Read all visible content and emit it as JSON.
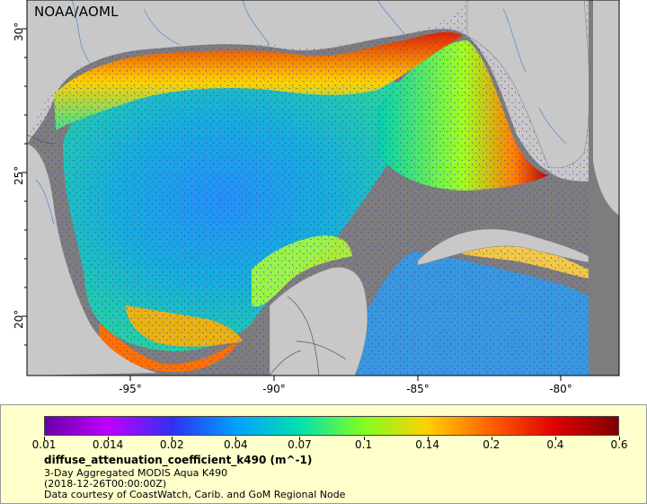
{
  "map": {
    "credit": "NOAA/AOML",
    "lon_labels": [
      "-95°",
      "-90°",
      "-85°",
      "-80°"
    ],
    "lat_labels": [
      "30°",
      "25°",
      "20°"
    ],
    "colors": {
      "land": "#c8c8c8",
      "no_data": "#7d7d7d",
      "rivers": "#5b8fd4",
      "borders": "#555555"
    }
  },
  "legend": {
    "colorbar_labels": [
      "0.01",
      "0.014",
      "0.02",
      "0.04",
      "0.07",
      "0.1",
      "0.14",
      "0.2",
      "0.4",
      "0.6"
    ],
    "colorbar_colors": [
      "#6a00a8",
      "#c000ff",
      "#3030f0",
      "#00a0ff",
      "#00e0b0",
      "#80ff20",
      "#ffd000",
      "#ff6000",
      "#e00000",
      "#800000"
    ],
    "variable": "diffuse_attenuation_coefficient_k490 (m^-1)",
    "line1": "3-Day Aggregated MODIS Aqua K490",
    "line2": "(2018-12-26T00:00:00Z)",
    "line3": "Data courtesy of CoastWatch, Carib. and GoM Regional Node"
  }
}
